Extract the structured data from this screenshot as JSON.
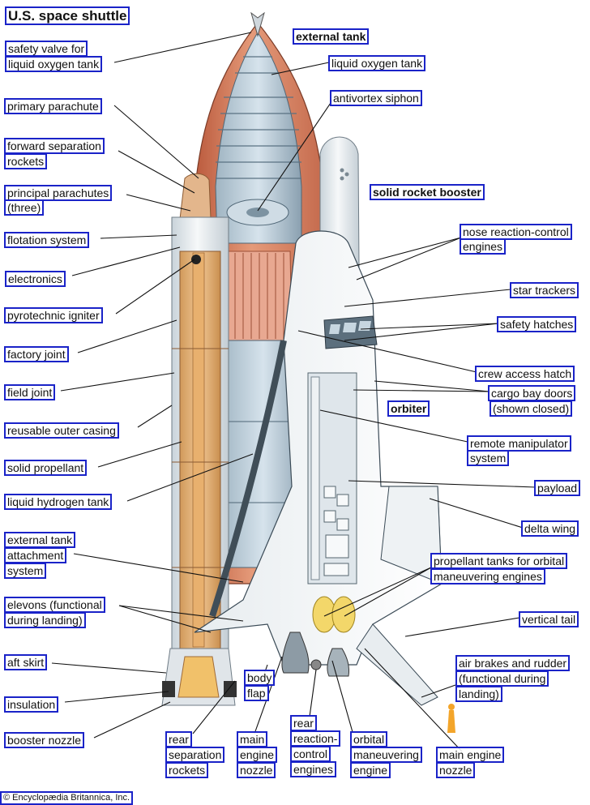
{
  "title": "U.S. space shuttle",
  "copyright": "© Encyclopædia Britannica, Inc.",
  "labels": {
    "external_tank": "external tank",
    "safety_valve_1": "safety valve for",
    "safety_valve_2": "liquid oxygen tank",
    "liquid_oxygen_tank": "liquid oxygen tank",
    "antivortex_siphon": "antivortex siphon",
    "primary_parachute": "primary parachute",
    "forward_sep_1": "forward separation",
    "forward_sep_2": "rockets",
    "principal_para_1": "principal parachutes",
    "principal_para_2": "(three)",
    "solid_rocket_booster": "solid rocket booster",
    "flotation_system": "flotation system",
    "nose_rcs_1": "nose reaction-control",
    "nose_rcs_2": "engines",
    "electronics": "electronics",
    "star_trackers": "star trackers",
    "pyrotechnic_igniter": "pyrotechnic igniter",
    "safety_hatches": "safety hatches",
    "factory_joint": "factory joint",
    "crew_access_hatch": "crew access hatch",
    "field_joint": "field joint",
    "cargo_doors_1": "cargo bay doors",
    "cargo_doors_2": "(shown closed)",
    "orbiter": "orbiter",
    "reusable_outer_casing": "reusable outer casing",
    "remote_manip_1": "remote manipulator",
    "remote_manip_2": "system",
    "solid_propellant": "solid propellant",
    "payload": "payload",
    "liquid_hydrogen_tank": "liquid hydrogen tank",
    "delta_wing": "delta wing",
    "ext_attach_1": "external tank",
    "ext_attach_2": "attachment",
    "ext_attach_3": "system",
    "prop_tanks_1": "propellant tanks for orbital",
    "prop_tanks_2": "maneuvering engines",
    "elevons_1": "elevons (functional",
    "elevons_2": "during landing)",
    "vertical_tail": "vertical tail",
    "aft_skirt": "aft skirt",
    "air_brakes_1": "air brakes and rudder",
    "air_brakes_2": "(functional during",
    "air_brakes_3": "landing)",
    "body_flap_1": "body",
    "body_flap_2": "flap",
    "insulation": "insulation",
    "rear_rcs_1": "rear",
    "rear_rcs_2": "reaction-",
    "rear_rcs_3": "control",
    "rear_rcs_4": "engines",
    "booster_nozzle": "booster nozzle",
    "rear_sep_1": "rear",
    "rear_sep_2": "separation",
    "rear_sep_3": "rockets",
    "main_nozzle_1": "main",
    "main_nozzle_2": "engine",
    "main_nozzle_3": "nozzle",
    "oms_1": "orbital",
    "oms_2": "maneuvering",
    "oms_3": "engine",
    "orbiter_main_1": "main engine",
    "orbiter_main_2": "nozzle"
  }
}
